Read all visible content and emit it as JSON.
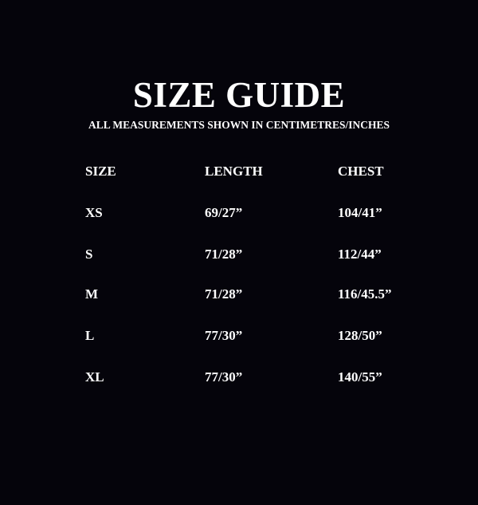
{
  "title": "SIZE GUIDE",
  "subtitle": "ALL MEASUREMENTS SHOWN IN CENTIMETRES/INCHES",
  "headers": [
    "SIZE",
    "LENGTH",
    "CHEST"
  ],
  "rows": [
    [
      "XS",
      "69/27”",
      "104/41”"
    ],
    [
      "S",
      "71/28”",
      "112/44”"
    ],
    [
      "M",
      "71/28”",
      "116/45.5”"
    ],
    [
      "L",
      "77/30”",
      "128/50”"
    ],
    [
      "XL",
      "77/30”",
      "140/55”"
    ]
  ],
  "colors": {
    "background": "#05040b",
    "text": "#ffffff"
  }
}
